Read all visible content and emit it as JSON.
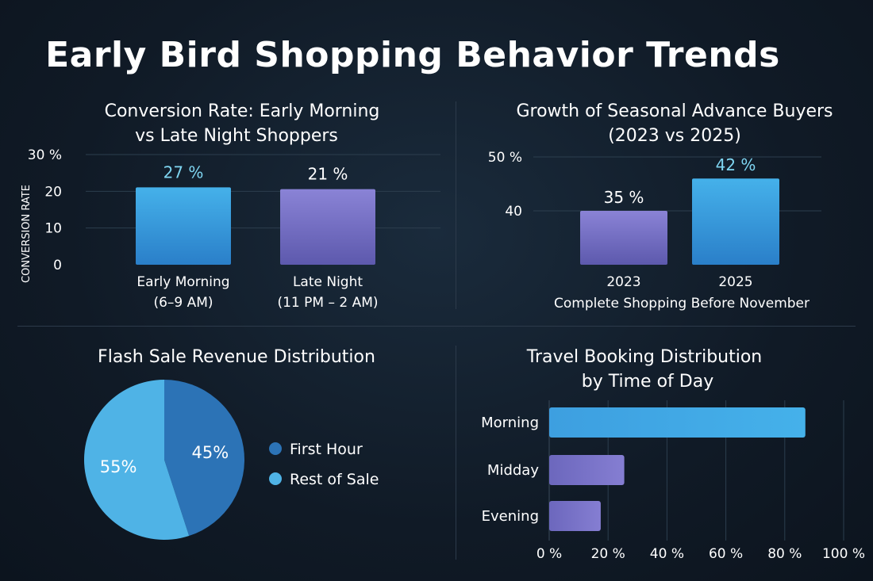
{
  "title": "Early Bird Shopping Behavior Trends",
  "colors": {
    "blue": "#3aa0e2",
    "purple": "#7a74c8",
    "dark_blue": "#2c73b6",
    "light_blue": "#4fb3e6",
    "highlight": "#7fd6f2",
    "grid": "#2c3e4e"
  },
  "chart_data": [
    {
      "type": "bar",
      "title_lines": [
        "Conversion Rate: Early Morning",
        "vs Late Night Shoppers"
      ],
      "ylabel": "CONVERSION RATE",
      "yticks": [
        "0",
        "10",
        "20",
        "30 %"
      ],
      "ylim": [
        0,
        30
      ],
      "categories": [
        {
          "line1": "Early Morning",
          "line2": "(6–9 AM)"
        },
        {
          "line1": "Late Night",
          "line2": "(11 PM – 2  AM)"
        }
      ],
      "values": [
        27,
        21
      ],
      "value_labels": [
        "27 %",
        "21 %"
      ]
    },
    {
      "type": "bar",
      "title_lines": [
        "Growth of Seasonal Advance Buyers",
        "(2023 vs 2025)"
      ],
      "xlabel": "Complete Shopping Before November",
      "yticks": [
        "40",
        "50 %"
      ],
      "ylim": [
        30,
        50
      ],
      "categories": [
        "2023",
        "2025"
      ],
      "values": [
        35,
        42
      ],
      "value_labels": [
        "35 %",
        "42 %"
      ]
    },
    {
      "type": "pie",
      "title": "Flash Sale Revenue Distribution",
      "slices": [
        {
          "label": "First Hour",
          "value": 45,
          "value_label": "45%"
        },
        {
          "label": "Rest of Sale",
          "value": 55,
          "value_label": "55%"
        }
      ]
    },
    {
      "type": "bar",
      "orientation": "horizontal",
      "title_lines": [
        "Travel Booking Distribution",
        "by Time of Day"
      ],
      "categories": [
        "Morning",
        "Midday",
        "Evening"
      ],
      "values": [
        85,
        25,
        17
      ],
      "xticks": [
        "0 %",
        "20 %",
        "40 %",
        "60 %",
        "80 %",
        "100 %"
      ],
      "xlim": [
        0,
        100
      ]
    }
  ]
}
